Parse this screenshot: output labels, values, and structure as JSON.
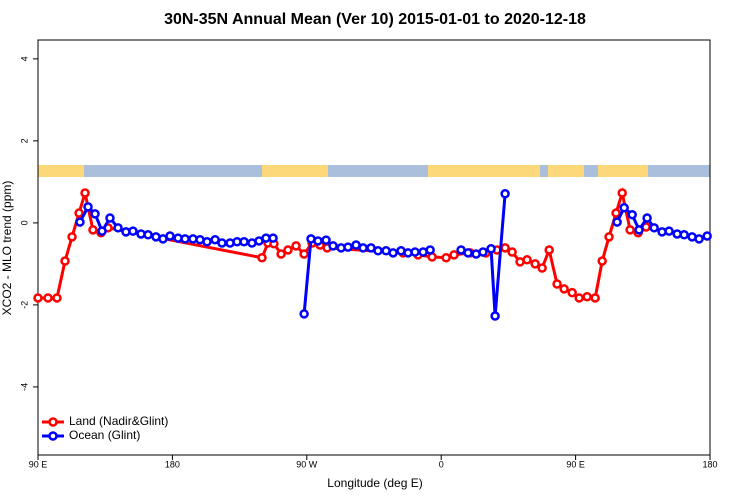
{
  "chart_data": {
    "type": "line",
    "title": "30N-35N Annual Mean (Ver 10)   2015-01-01 to 2020-12-18",
    "xlabel": "Longitude (deg E)",
    "ylabel": "XCO2 - MLO trend (ppm)",
    "xlim": [
      90,
      540
    ],
    "xticks": [
      {
        "value": 90,
        "label": "90 E"
      },
      {
        "value": 180,
        "label": "180"
      },
      {
        "value": 270,
        "label": "90 W"
      },
      {
        "value": 360,
        "label": "0"
      },
      {
        "value": 450,
        "label": "90 E"
      },
      {
        "value": 540,
        "label": "180"
      }
    ],
    "ylim": [
      -5.66,
      4.46
    ],
    "yticks": [
      -4,
      -2,
      0,
      2,
      4
    ],
    "legend": "bottom-left",
    "series": [
      {
        "name": "Land (Nadir&Glint)",
        "color": "#ff0000",
        "x": [
          90,
          96.7,
          102.7,
          108.1,
          112.8,
          117.5,
          121.5,
          126.8,
          132.2,
          136.9,
          240,
          244,
          248,
          252.8,
          257.4,
          262.8,
          268.2,
          273.5,
          278.9,
          283.6,
          334.5,
          344.5,
          353.9,
          363.3,
          368.6,
          379.4,
          390,
          397.4,
          402.8,
          407.5,
          412.8,
          417.5,
          422.9,
          427.6,
          432.3,
          437.6,
          442.3,
          447.7,
          452.4,
          457.7,
          463.1,
          467.8,
          472.4,
          477.1,
          481.2,
          486.5,
          491.9,
          497.2
        ],
        "values": [
          -1.83,
          -1.83,
          -1.83,
          -0.93,
          -0.34,
          0.24,
          0.73,
          -0.17,
          -0.24,
          -0.12,
          -0.85,
          -0.49,
          -0.51,
          -0.76,
          -0.66,
          -0.56,
          -0.76,
          -0.49,
          -0.54,
          -0.61,
          -0.73,
          -0.78,
          -0.83,
          -0.85,
          -0.78,
          -0.73,
          -0.73,
          -0.66,
          -0.61,
          -0.71,
          -0.95,
          -0.9,
          -1.0,
          -1.1,
          -0.66,
          -1.49,
          -1.61,
          -1.7,
          -1.83,
          -1.8,
          -1.83,
          -0.93,
          -0.34,
          0.24,
          0.73,
          -0.17,
          -0.24,
          -0.1
        ]
      },
      {
        "name": "Ocean (Glint)",
        "color": "#0000ff",
        "x": [
          118.1,
          123.5,
          128.2,
          132.9,
          138.2,
          143.6,
          148.9,
          153.6,
          159,
          163.7,
          169,
          173.7,
          178.4,
          183.8,
          188.5,
          193.8,
          198.5,
          203.2,
          208.6,
          213.2,
          218.6,
          223.3,
          228,
          233.3,
          238,
          242.7,
          247.4,
          260,
          268.2,
          272.8,
          277.5,
          282.9,
          287.6,
          293,
          297.6,
          303,
          307.7,
          313,
          317.7,
          323.1,
          327.8,
          333.1,
          337.8,
          342.5,
          347.9,
          352.6,
          365,
          373.3,
          378,
          383.4,
          388,
          393.4,
          396.1,
          402.8,
          440,
          477.8,
          482.5,
          487.9,
          492.5,
          497.9,
          502.6,
          507.9,
          512.6,
          518,
          522.7,
          528,
          532.7,
          538.1
        ],
        "values": [
          0.02,
          0.39,
          0.22,
          -0.2,
          0.12,
          -0.12,
          -0.22,
          -0.2,
          -0.27,
          -0.29,
          -0.34,
          -0.39,
          -0.32,
          -0.37,
          -0.39,
          -0.39,
          -0.41,
          -0.46,
          -0.41,
          -0.49,
          -0.49,
          -0.46,
          -0.46,
          -0.49,
          -0.44,
          -0.37,
          -0.37,
          null,
          -2.22,
          -0.39,
          -0.44,
          -0.42,
          -0.56,
          -0.61,
          -0.59,
          -0.54,
          -0.61,
          -0.61,
          -0.68,
          -0.68,
          -0.73,
          -0.68,
          -0.73,
          -0.71,
          -0.71,
          -0.66,
          null,
          -0.66,
          -0.73,
          -0.76,
          -0.71,
          -0.63,
          -2.27,
          0.71,
          null,
          0.02,
          0.37,
          0.2,
          -0.17,
          0.12,
          -0.12,
          -0.22,
          -0.2,
          -0.27,
          -0.29,
          -0.34,
          -0.39,
          -0.32
        ]
      }
    ]
  }
}
